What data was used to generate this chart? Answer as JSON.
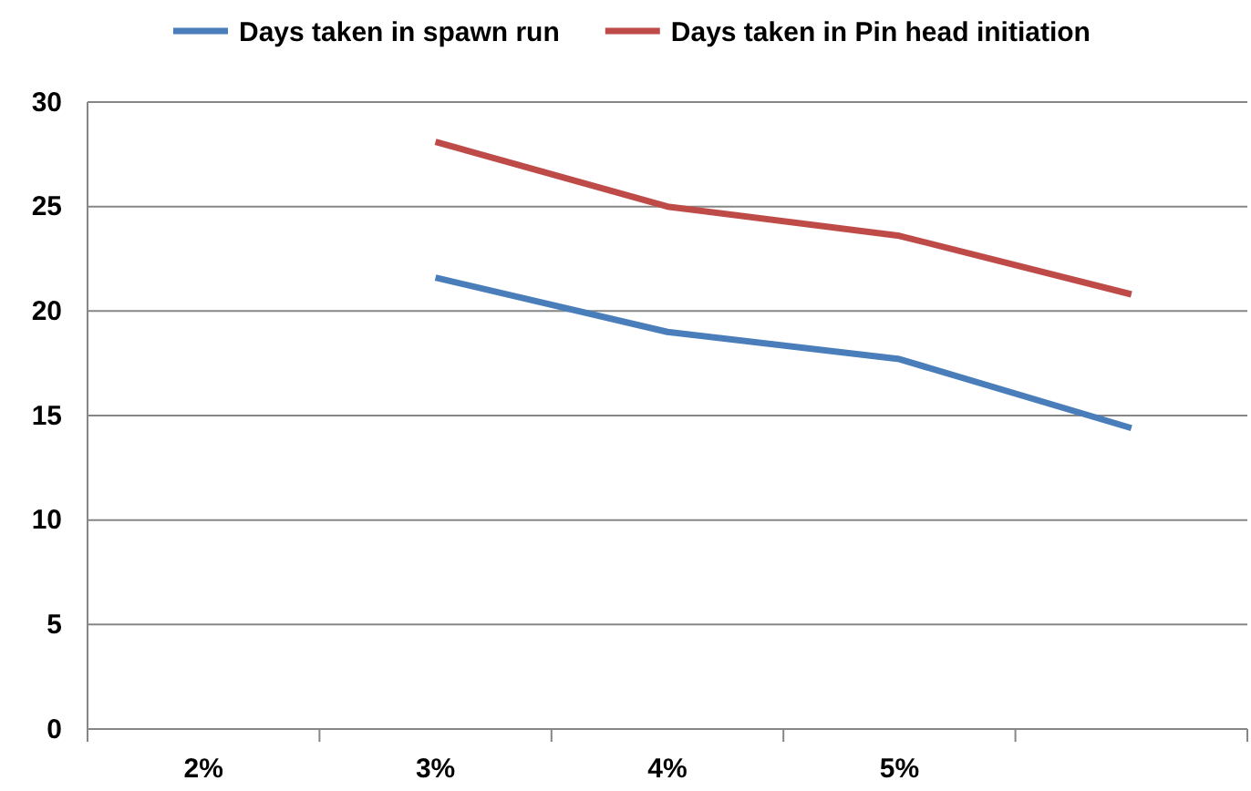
{
  "chart_data": {
    "type": "line",
    "categories": [
      "2%",
      "3%",
      "4%",
      "5%",
      null
    ],
    "series": [
      {
        "name": "Days taken in spawn run",
        "color": "#4a7ebb",
        "values": [
          null,
          21.6,
          19.0,
          17.7,
          14.4
        ]
      },
      {
        "name": "Days taken in Pin head initiation",
        "color": "#be4b48",
        "values": [
          null,
          28.1,
          25.0,
          23.6,
          20.8
        ]
      }
    ],
    "ylim": [
      0,
      30
    ],
    "yticks": [
      0,
      5,
      10,
      15,
      20,
      25,
      30
    ],
    "grid": "y",
    "legend": "top",
    "marker": "none",
    "line_style": "solid"
  }
}
